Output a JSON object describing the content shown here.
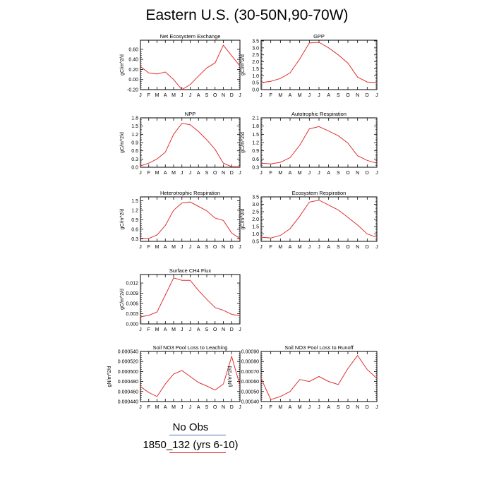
{
  "figure": {
    "title": "Eastern U.S. (30-50N,90-70W)"
  },
  "legend": [
    {
      "label": "No Obs",
      "color": "#4a6fb8"
    },
    {
      "label": "1850_132 (yrs 6-10)",
      "color": "#e03030"
    }
  ],
  "chart_data": [
    {
      "type": "line",
      "title": "Net Ecosystem Exchange",
      "ylabel": "gC/m^2/d",
      "categories": [
        "J",
        "F",
        "M",
        "A",
        "M",
        "J",
        "J",
        "A",
        "S",
        "O",
        "N",
        "D",
        "J"
      ],
      "yticks": [
        "-0.20",
        "0.00",
        "0.20",
        "0.40",
        "0.60"
      ],
      "ytick_values": [
        -0.2,
        0,
        0.2,
        0.4,
        0.6
      ],
      "ylim": [
        -0.2,
        0.78
      ],
      "series": [
        {
          "color": "#e03030",
          "values": [
            0.26,
            0.13,
            0.11,
            0.15,
            0.0,
            -0.2,
            -0.1,
            0.07,
            0.23,
            0.33,
            0.68,
            0.47,
            0.27
          ]
        }
      ]
    },
    {
      "type": "line",
      "title": "GPP",
      "ylabel": "gC/m^2/d",
      "categories": [
        "J",
        "F",
        "M",
        "A",
        "M",
        "J",
        "J",
        "A",
        "S",
        "O",
        "N",
        "D",
        "J"
      ],
      "yticks": [
        "0.0",
        "0.5",
        "1.0",
        "1.5",
        "2.0",
        "2.5",
        "3.0",
        "3.5"
      ],
      "ytick_values": [
        0,
        0.5,
        1,
        1.5,
        2,
        2.5,
        3,
        3.5
      ],
      "ylim": [
        0,
        3.55
      ],
      "series": [
        {
          "color": "#e03030",
          "values": [
            0.5,
            0.6,
            0.8,
            1.2,
            2.2,
            3.35,
            3.4,
            3.0,
            2.5,
            1.9,
            0.9,
            0.55,
            0.5
          ]
        }
      ]
    },
    {
      "type": "line",
      "title": "NPP",
      "ylabel": "gC/m^2/d",
      "categories": [
        "J",
        "F",
        "M",
        "A",
        "M",
        "J",
        "J",
        "A",
        "S",
        "O",
        "N",
        "D",
        "J"
      ],
      "yticks": [
        "0.0",
        "0.3",
        "0.6",
        "0.9",
        "1.2",
        "1.5",
        "1.8"
      ],
      "ytick_values": [
        0,
        0.3,
        0.6,
        0.9,
        1.2,
        1.5,
        1.8
      ],
      "ylim": [
        0,
        1.8
      ],
      "series": [
        {
          "color": "#e03030",
          "values": [
            0.05,
            0.15,
            0.3,
            0.55,
            1.2,
            1.6,
            1.55,
            1.3,
            1.0,
            0.65,
            0.15,
            0.02,
            0.02
          ]
        }
      ]
    },
    {
      "type": "line",
      "title": "Autotrophic Respiration",
      "ylabel": "gC/m^2/d",
      "categories": [
        "J",
        "F",
        "M",
        "A",
        "M",
        "J",
        "J",
        "A",
        "S",
        "O",
        "N",
        "D",
        "J"
      ],
      "yticks": [
        "0.3",
        "0.6",
        "0.9",
        "1.2",
        "1.5",
        "1.8",
        "2.1"
      ],
      "ytick_values": [
        0.3,
        0.6,
        0.9,
        1.2,
        1.5,
        1.8,
        2.1
      ],
      "ylim": [
        0.3,
        2.1
      ],
      "series": [
        {
          "color": "#e03030",
          "values": [
            0.45,
            0.42,
            0.48,
            0.65,
            1.1,
            1.7,
            1.78,
            1.62,
            1.45,
            1.18,
            0.72,
            0.55,
            0.45
          ]
        }
      ]
    },
    {
      "type": "line",
      "title": "Heterotrophic Respiration",
      "ylabel": "gC/m^2/d",
      "categories": [
        "J",
        "F",
        "M",
        "A",
        "M",
        "J",
        "J",
        "A",
        "S",
        "O",
        "N",
        "D",
        "J"
      ],
      "yticks": [
        "0.3",
        "0.6",
        "0.9",
        "1.2",
        "1.5"
      ],
      "ytick_values": [
        0.3,
        0.6,
        0.9,
        1.2,
        1.5
      ],
      "ylim": [
        0.22,
        1.62
      ],
      "series": [
        {
          "color": "#e03030",
          "values": [
            0.32,
            0.31,
            0.42,
            0.72,
            1.2,
            1.43,
            1.46,
            1.32,
            1.18,
            0.95,
            0.88,
            0.48,
            0.31
          ]
        }
      ]
    },
    {
      "type": "line",
      "title": "Ecosystem Respiration",
      "ylabel": "gC/m^2/d",
      "categories": [
        "J",
        "F",
        "M",
        "A",
        "M",
        "J",
        "J",
        "A",
        "S",
        "O",
        "N",
        "D",
        "J"
      ],
      "yticks": [
        "0.5",
        "1.0",
        "1.5",
        "2.0",
        "2.5",
        "3.0",
        "3.5"
      ],
      "ytick_values": [
        0.5,
        1,
        1.5,
        2,
        2.5,
        3,
        3.5
      ],
      "ylim": [
        0.5,
        3.5
      ],
      "series": [
        {
          "color": "#e03030",
          "values": [
            0.78,
            0.73,
            0.9,
            1.35,
            2.2,
            3.15,
            3.28,
            2.95,
            2.62,
            2.12,
            1.6,
            1.0,
            0.77
          ]
        }
      ]
    },
    {
      "type": "line",
      "title": "Surface CH4 Flux",
      "ylabel": "gC/m^2/d",
      "categories": [
        "J",
        "F",
        "M",
        "A",
        "M",
        "J",
        "J",
        "A",
        "S",
        "O",
        "N",
        "D",
        "J"
      ],
      "yticks": [
        "0.000",
        "0.003",
        "0.006",
        "0.009",
        "0.012"
      ],
      "ytick_values": [
        0,
        0.003,
        0.006,
        0.009,
        0.012
      ],
      "ylim": [
        0,
        0.0145
      ],
      "series": [
        {
          "color": "#e03030",
          "values": [
            0.0021,
            0.0025,
            0.0035,
            0.0085,
            0.0135,
            0.0128,
            0.0128,
            0.0098,
            0.0072,
            0.0048,
            0.004,
            0.0028,
            0.0024
          ]
        }
      ]
    },
    {
      "type": "line",
      "title": "Soil NO3 Pool Loss to Leaching",
      "ylabel": "gN/m^2/d",
      "categories": [
        "J",
        "F",
        "M",
        "A",
        "M",
        "J",
        "J",
        "A",
        "S",
        "O",
        "N",
        "D",
        "J"
      ],
      "yticks": [
        "0.000440",
        "0.000460",
        "0.000480",
        "0.000500",
        "0.000520",
        "0.000540"
      ],
      "ytick_values": [
        0.00044,
        0.00046,
        0.00048,
        0.0005,
        0.00052,
        0.00054
      ],
      "ylim": [
        0.00044,
        0.00054
      ],
      "series": [
        {
          "color": "#e03030",
          "values": [
            0.00047,
            0.000458,
            0.00045,
            0.000475,
            0.000495,
            0.000502,
            0.00049,
            0.000478,
            0.000471,
            0.000463,
            0.000475,
            0.00053,
            0.000472
          ]
        }
      ]
    },
    {
      "type": "line",
      "title": "Soil NO3 Pool Loss to Runoff",
      "ylabel": "gN/m^2/d",
      "categories": [
        "J",
        "F",
        "M",
        "A",
        "M",
        "J",
        "J",
        "A",
        "S",
        "O",
        "N",
        "D",
        "J"
      ],
      "yticks": [
        "0.00040",
        "0.00050",
        "0.00060",
        "0.00070",
        "0.00080",
        "0.00090"
      ],
      "ytick_values": [
        0.0004,
        0.0005,
        0.0006,
        0.0007,
        0.0008,
        0.0009
      ],
      "ylim": [
        0.0004,
        0.0009
      ],
      "series": [
        {
          "color": "#e03030",
          "values": [
            0.00063,
            0.00042,
            0.00045,
            0.0005,
            0.00062,
            0.0006,
            0.00065,
            0.0006,
            0.00057,
            0.00073,
            0.00086,
            0.00072,
            0.00063
          ]
        }
      ]
    }
  ]
}
